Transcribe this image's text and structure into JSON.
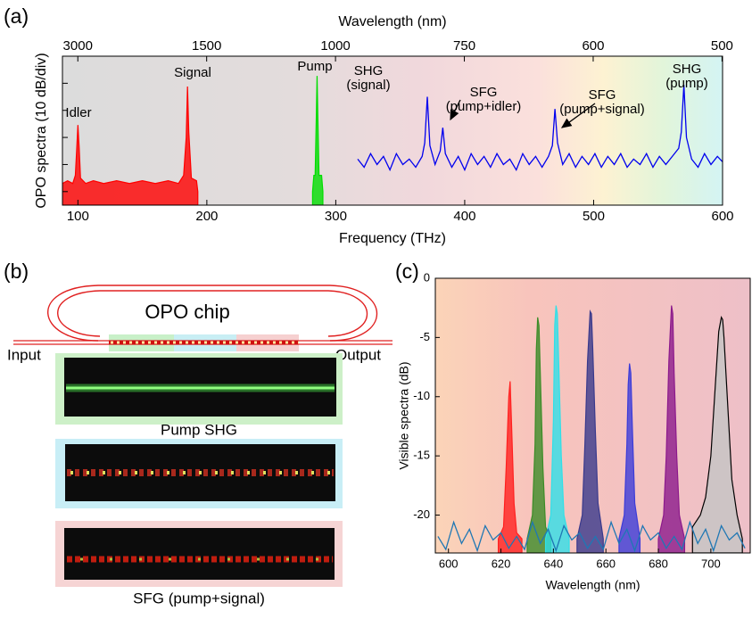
{
  "panel_labels": [
    "(a)",
    "(b)",
    "(c)"
  ],
  "chip_figure": {
    "chip_label": "OPO chip",
    "input": "Input",
    "output": "Output",
    "image_captions": [
      "Pump SHG",
      "SFG (pump+signal)"
    ]
  },
  "chart_data": [
    {
      "type": "line",
      "xlabel": "Frequency (THz)",
      "x2label": "Wavelength (nm)",
      "ylabel": "OPO spectra (10 dB/div)",
      "xlim": [
        88,
        600
      ],
      "xticks": [
        100,
        200,
        300,
        400,
        500,
        600
      ],
      "x2ticks": [
        3000,
        1500,
        1000,
        750,
        600,
        500
      ],
      "ylim": [
        -55,
        0
      ],
      "yticks": [
        -50,
        -40,
        -30,
        -20,
        -10
      ],
      "ytick_labels": false,
      "annotations": [
        [
          "Idler"
        ],
        [
          "Signal"
        ],
        [
          "Pump"
        ],
        [
          "SHG",
          "(signal)"
        ],
        [
          "SFG",
          "(pump+idler)"
        ],
        [
          "SFG",
          "(pump+signal)"
        ],
        [
          "SHG",
          "(pump)"
        ]
      ],
      "series": [
        {
          "color": "#ff0000",
          "style": "area",
          "x": [
            88,
            92,
            96,
            98,
            99,
            100,
            101,
            102,
            106,
            112,
            120,
            130,
            140,
            150,
            160,
            170,
            178,
            182,
            184,
            185,
            186,
            188,
            192,
            193
          ],
          "values": [
            -47,
            -46,
            -47,
            -44,
            -35,
            -25.4,
            -34,
            -45,
            -47,
            -46,
            -47,
            -46,
            -47,
            -46,
            -47,
            -46,
            -47,
            -44,
            -30,
            -11.2,
            -28,
            -45,
            -46,
            -50
          ]
        },
        {
          "color": "#00dd00",
          "style": "area",
          "x": [
            282,
            283,
            284,
            285,
            285.5,
            286,
            287,
            288,
            289,
            290
          ],
          "values": [
            -50,
            -44,
            -44,
            -20,
            -7.3,
            -20,
            -44,
            -44,
            -44,
            -50
          ]
        },
        {
          "color": "#0000ee",
          "style": "line",
          "x": [
            317,
            322,
            327,
            332,
            337,
            342,
            347,
            352,
            357,
            362,
            367,
            369,
            371,
            373,
            377,
            381,
            383,
            385,
            390,
            395,
            400,
            405,
            410,
            415,
            420,
            425,
            430,
            435,
            440,
            445,
            450,
            455,
            460,
            465,
            468,
            470,
            472,
            476,
            481,
            486,
            491,
            496,
            501,
            506,
            511,
            516,
            521,
            526,
            531,
            536,
            541,
            546,
            551,
            556,
            561,
            566,
            568,
            570,
            572,
            576,
            581,
            586,
            591,
            596,
            600
          ],
          "values": [
            -38,
            -41,
            -36,
            -40,
            -37,
            -42,
            -36,
            -40,
            -38,
            -41,
            -37,
            -32,
            -15,
            -33,
            -40,
            -35,
            -26.4,
            -36,
            -41,
            -37,
            -42,
            -36,
            -40,
            -37,
            -41,
            -36,
            -40,
            -38,
            -42,
            -36,
            -40,
            -37,
            -41,
            -37,
            -33,
            -19.5,
            -32,
            -40,
            -36,
            -41,
            -37,
            -40,
            -36,
            -41,
            -37,
            -40,
            -36,
            -41,
            -38,
            -40,
            -36,
            -41,
            -37,
            -40,
            -37,
            -34,
            -28,
            -10.6,
            -30,
            -38,
            -41,
            -36,
            -40,
            -37,
            -39
          ]
        }
      ]
    },
    {
      "type": "area",
      "xlabel": "Wavelength (nm)",
      "ylabel": "Visible spectra (dB)",
      "xlim": [
        595,
        715
      ],
      "xticks": [
        600,
        620,
        640,
        660,
        680,
        700
      ],
      "ylim": [
        -23.2,
        0
      ],
      "yticks": [
        0,
        -5,
        -10,
        -15,
        -20
      ],
      "ytick_labels": true,
      "series": [
        {
          "color": "#ff2020",
          "x": [
            619,
            621,
            622,
            623,
            623.5,
            624,
            625,
            626,
            628
          ],
          "values": [
            -22,
            -21,
            -16,
            -10,
            -8.7,
            -12,
            -19,
            -21.5,
            -22
          ]
        },
        {
          "color": "#3c8c28",
          "x": [
            630,
            632,
            633,
            633.5,
            634,
            634.5,
            635,
            636,
            637,
            639
          ],
          "values": [
            -22,
            -20,
            -14,
            -6,
            -3.3,
            -4,
            -8,
            -16,
            -21,
            -22
          ]
        },
        {
          "color": "#30e0e8",
          "x": [
            637,
            639,
            640,
            640.5,
            641,
            641.5,
            642,
            643,
            644,
            646
          ],
          "values": [
            -22,
            -20,
            -12,
            -4,
            -2.3,
            -3,
            -7,
            -15,
            -20,
            -22
          ]
        },
        {
          "color": "#3a3a8c",
          "x": [
            649,
            651,
            652,
            653,
            654,
            654.5,
            655,
            656,
            657,
            659
          ],
          "values": [
            -22,
            -20,
            -14,
            -7,
            -2.8,
            -3,
            -6,
            -13,
            -19,
            -22
          ]
        },
        {
          "color": "#3c3cd8",
          "x": [
            665,
            667,
            668,
            668.5,
            669,
            669.5,
            670,
            671,
            673
          ],
          "values": [
            -22,
            -20,
            -14,
            -9,
            -7.2,
            -8,
            -12,
            -19,
            -22
          ]
        },
        {
          "color": "#8c1a8c",
          "x": [
            680,
            682,
            683,
            684,
            685,
            685.5,
            686,
            687,
            688,
            690
          ],
          "values": [
            -22,
            -20,
            -15,
            -7,
            -2.3,
            -3,
            -8,
            -15,
            -20,
            -22
          ]
        },
        {
          "color": "#c4c4c4",
          "edgecolor": "#000000",
          "x": [
            693,
            696,
            698,
            700,
            702,
            703,
            704,
            704.5,
            705,
            706,
            708,
            710,
            712
          ],
          "values": [
            -21,
            -20,
            -18.5,
            -15,
            -8,
            -4.5,
            -3.3,
            -3.5,
            -5,
            -9,
            -17,
            -20,
            -22
          ]
        },
        {
          "color": "#1f77b4",
          "style": "line",
          "x": [
            596,
            599,
            602,
            605,
            608,
            611,
            614,
            617,
            620,
            623,
            626,
            629,
            632,
            635,
            638,
            641,
            644,
            647,
            650,
            653,
            656,
            659,
            662,
            665,
            668,
            671,
            674,
            677,
            680,
            683,
            686,
            689,
            692,
            695,
            698,
            701,
            704,
            707,
            710,
            713
          ],
          "values": [
            -21.8,
            -22.9,
            -20.6,
            -22.4,
            -21.2,
            -23.0,
            -20.9,
            -22.1,
            -21.5,
            -22.8,
            -21.8,
            -22.9,
            -20.6,
            -22.4,
            -21.2,
            -23.0,
            -20.9,
            -22.1,
            -21.5,
            -22.8,
            -21.8,
            -22.9,
            -20.6,
            -22.4,
            -21.2,
            -23.0,
            -20.9,
            -22.1,
            -21.5,
            -22.8,
            -21.8,
            -22.9,
            -20.6,
            -22.4,
            -21.2,
            -23.0,
            -20.9,
            -22.1,
            -21.5,
            -22.8
          ]
        }
      ]
    }
  ]
}
